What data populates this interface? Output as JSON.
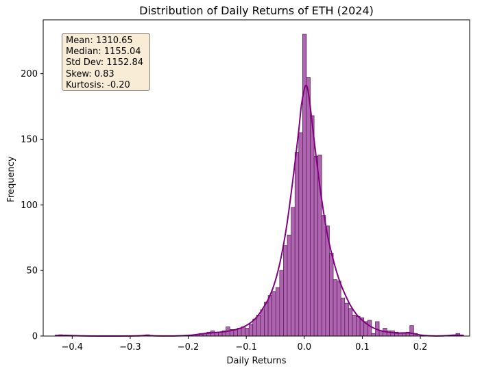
{
  "chart_data": {
    "type": "histogram",
    "title": "Distribution of Daily Returns of ETH (2024)",
    "xlabel": "Daily Returns",
    "ylabel": "Frequency",
    "xlim": [
      -0.45,
      0.285
    ],
    "ylim": [
      0,
      241
    ],
    "x_ticks": [
      -0.4,
      -0.3,
      -0.2,
      -0.1,
      0.0,
      0.1,
      0.2
    ],
    "x_tick_labels": [
      "−0.4",
      "−0.3",
      "−0.2",
      "−0.1",
      "0.0",
      "0.1",
      "0.2"
    ],
    "y_ticks": [
      0,
      50,
      100,
      150,
      200
    ],
    "y_tick_labels": [
      "0",
      "50",
      "100",
      "150",
      "200"
    ],
    "bar_color": "#b063b0",
    "bar_edge_color": "#4a1e4a",
    "kde_color": "#800080",
    "bin_width": 0.0066,
    "bins": [
      {
        "x": -0.4232,
        "count": 1
      },
      {
        "x": -0.2733,
        "count": 1
      },
      {
        "x": -0.1877,
        "count": 1
      },
      {
        "x": -0.1811,
        "count": 2
      },
      {
        "x": -0.1745,
        "count": 2
      },
      {
        "x": -0.1679,
        "count": 3
      },
      {
        "x": -0.1613,
        "count": 4
      },
      {
        "x": -0.1547,
        "count": 3
      },
      {
        "x": -0.1481,
        "count": 3
      },
      {
        "x": -0.1415,
        "count": 4
      },
      {
        "x": -0.1349,
        "count": 7
      },
      {
        "x": -0.1283,
        "count": 5
      },
      {
        "x": -0.1217,
        "count": 5
      },
      {
        "x": -0.1151,
        "count": 6
      },
      {
        "x": -0.1085,
        "count": 7
      },
      {
        "x": -0.1019,
        "count": 6
      },
      {
        "x": -0.0953,
        "count": 9
      },
      {
        "x": -0.0887,
        "count": 13
      },
      {
        "x": -0.0821,
        "count": 16
      },
      {
        "x": -0.0755,
        "count": 20
      },
      {
        "x": -0.0689,
        "count": 26
      },
      {
        "x": -0.0623,
        "count": 31
      },
      {
        "x": -0.0557,
        "count": 34
      },
      {
        "x": -0.0491,
        "count": 37
      },
      {
        "x": -0.0425,
        "count": 50
      },
      {
        "x": -0.0359,
        "count": 69
      },
      {
        "x": -0.0293,
        "count": 77
      },
      {
        "x": -0.0227,
        "count": 98
      },
      {
        "x": -0.0161,
        "count": 140
      },
      {
        "x": -0.0095,
        "count": 155
      },
      {
        "x": -0.0029,
        "count": 230
      },
      {
        "x": 0.0037,
        "count": 197
      },
      {
        "x": 0.0103,
        "count": 168
      },
      {
        "x": 0.0169,
        "count": 137
      },
      {
        "x": 0.0235,
        "count": 138
      },
      {
        "x": 0.0301,
        "count": 92
      },
      {
        "x": 0.0367,
        "count": 84
      },
      {
        "x": 0.0433,
        "count": 63
      },
      {
        "x": 0.0499,
        "count": 43
      },
      {
        "x": 0.0565,
        "count": 42
      },
      {
        "x": 0.0631,
        "count": 29
      },
      {
        "x": 0.0697,
        "count": 25
      },
      {
        "x": 0.0763,
        "count": 21
      },
      {
        "x": 0.0829,
        "count": 16
      },
      {
        "x": 0.0895,
        "count": 15
      },
      {
        "x": 0.0961,
        "count": 14
      },
      {
        "x": 0.1027,
        "count": 11
      },
      {
        "x": 0.1093,
        "count": 12
      },
      {
        "x": 0.1159,
        "count": 2
      },
      {
        "x": 0.1225,
        "count": 11
      },
      {
        "x": 0.1291,
        "count": 4
      },
      {
        "x": 0.1357,
        "count": 6
      },
      {
        "x": 0.1423,
        "count": 4
      },
      {
        "x": 0.1489,
        "count": 4
      },
      {
        "x": 0.1555,
        "count": 3
      },
      {
        "x": 0.1621,
        "count": 2
      },
      {
        "x": 0.1687,
        "count": 2
      },
      {
        "x": 0.1753,
        "count": 3
      },
      {
        "x": 0.1819,
        "count": 8
      },
      {
        "x": 0.1885,
        "count": 2
      },
      {
        "x": 0.2613,
        "count": 2
      }
    ],
    "kde": [
      {
        "x": -0.43,
        "y": 0.4
      },
      {
        "x": -0.41,
        "y": 0.5
      },
      {
        "x": -0.38,
        "y": 0.1
      },
      {
        "x": -0.33,
        "y": 0.0
      },
      {
        "x": -0.29,
        "y": 0.1
      },
      {
        "x": -0.273,
        "y": 0.5
      },
      {
        "x": -0.255,
        "y": 0.1
      },
      {
        "x": -0.22,
        "y": 0.1
      },
      {
        "x": -0.2,
        "y": 0.5
      },
      {
        "x": -0.185,
        "y": 1.2
      },
      {
        "x": -0.17,
        "y": 2.0
      },
      {
        "x": -0.155,
        "y": 2.6
      },
      {
        "x": -0.14,
        "y": 3.2
      },
      {
        "x": -0.125,
        "y": 4.2
      },
      {
        "x": -0.11,
        "y": 6.0
      },
      {
        "x": -0.1,
        "y": 8.0
      },
      {
        "x": -0.09,
        "y": 11.0
      },
      {
        "x": -0.08,
        "y": 15.5
      },
      {
        "x": -0.07,
        "y": 22.0
      },
      {
        "x": -0.06,
        "y": 30.0
      },
      {
        "x": -0.05,
        "y": 42.0
      },
      {
        "x": -0.04,
        "y": 60.0
      },
      {
        "x": -0.03,
        "y": 85.0
      },
      {
        "x": -0.02,
        "y": 118.0
      },
      {
        "x": -0.01,
        "y": 155.0
      },
      {
        "x": -0.005,
        "y": 176.0
      },
      {
        "x": 0.0,
        "y": 188.0
      },
      {
        "x": 0.003,
        "y": 191.0
      },
      {
        "x": 0.006,
        "y": 188.0
      },
      {
        "x": 0.01,
        "y": 176.0
      },
      {
        "x": 0.02,
        "y": 138.0
      },
      {
        "x": 0.03,
        "y": 104.0
      },
      {
        "x": 0.04,
        "y": 77.0
      },
      {
        "x": 0.05,
        "y": 58.0
      },
      {
        "x": 0.06,
        "y": 43.0
      },
      {
        "x": 0.07,
        "y": 32.0
      },
      {
        "x": 0.08,
        "y": 23.0
      },
      {
        "x": 0.09,
        "y": 16.5
      },
      {
        "x": 0.1,
        "y": 12.0
      },
      {
        "x": 0.11,
        "y": 8.5
      },
      {
        "x": 0.12,
        "y": 6.0
      },
      {
        "x": 0.13,
        "y": 4.3
      },
      {
        "x": 0.14,
        "y": 3.3
      },
      {
        "x": 0.15,
        "y": 2.6
      },
      {
        "x": 0.16,
        "y": 2.3
      },
      {
        "x": 0.17,
        "y": 2.4
      },
      {
        "x": 0.18,
        "y": 2.4
      },
      {
        "x": 0.19,
        "y": 1.7
      },
      {
        "x": 0.2,
        "y": 0.8
      },
      {
        "x": 0.215,
        "y": 0.2
      },
      {
        "x": 0.235,
        "y": 0.1
      },
      {
        "x": 0.26,
        "y": 0.7
      },
      {
        "x": 0.275,
        "y": 0.5
      }
    ]
  },
  "stats": {
    "mean": "Mean: 1310.65",
    "median": "Median: 1155.04",
    "std_dev": "Std Dev: 1152.84",
    "skew": "Skew: 0.83",
    "kurtosis": "Kurtosis: -0.20"
  }
}
